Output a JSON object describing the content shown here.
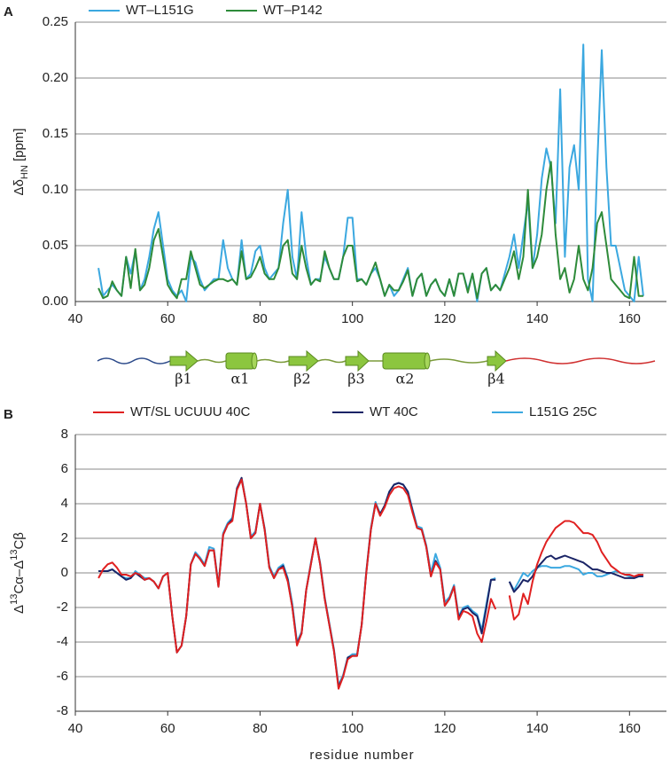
{
  "chart_data": [
    {
      "type": "line",
      "panel": "A",
      "ylabel": {
        "main": "Δδ",
        "sub": "HN",
        "unit": " [ppm]"
      },
      "xlim": [
        40,
        168
      ],
      "xticks": [
        40,
        60,
        80,
        100,
        120,
        140,
        160
      ],
      "ylim": [
        0,
        0.25
      ],
      "yticks": [
        {
          "value": 0,
          "label": "0.00"
        },
        {
          "value": 0.05,
          "label": "0.05"
        },
        {
          "value": 0.1,
          "label": "0.10"
        },
        {
          "value": 0.15,
          "label": "0.15"
        },
        {
          "value": 0.2,
          "label": "0.20"
        },
        {
          "value": 0.25,
          "label": "0.25"
        }
      ],
      "grid": true,
      "legend": "top",
      "x": [
        45,
        46,
        47,
        48,
        49,
        50,
        51,
        52,
        53,
        54,
        55,
        56,
        57,
        58,
        59,
        60,
        61,
        62,
        63,
        64,
        65,
        66,
        67,
        68,
        69,
        70,
        71,
        72,
        73,
        74,
        75,
        76,
        77,
        78,
        79,
        80,
        81,
        82,
        83,
        84,
        85,
        86,
        87,
        88,
        89,
        90,
        91,
        92,
        93,
        94,
        95,
        96,
        97,
        98,
        99,
        100,
        101,
        102,
        103,
        104,
        105,
        106,
        107,
        108,
        109,
        110,
        111,
        112,
        113,
        114,
        115,
        116,
        117,
        118,
        119,
        120,
        121,
        122,
        123,
        124,
        125,
        126,
        127,
        128,
        129,
        130,
        131,
        132,
        133,
        134,
        135,
        136,
        137,
        138,
        139,
        140,
        141,
        142,
        143,
        144,
        145,
        146,
        147,
        148,
        149,
        150,
        151,
        152,
        153,
        154,
        155,
        156,
        157,
        158,
        159,
        160,
        161,
        162,
        163
      ],
      "series": [
        {
          "name": "WT–L151G",
          "color": "#3ba8e0",
          "values": [
            0.03,
            0.005,
            0.01,
            0.015,
            0.01,
            0.005,
            0.04,
            0.025,
            0.045,
            0.01,
            0.02,
            0.04,
            0.065,
            0.08,
            0.05,
            0.02,
            0.01,
            0.005,
            0.01,
            0,
            0.04,
            0.035,
            0.02,
            0.01,
            0.015,
            0.02,
            0.02,
            0.055,
            0.03,
            0.02,
            0.015,
            0.055,
            0.02,
            0.025,
            0.045,
            0.05,
            0.03,
            0.02,
            0.025,
            0.03,
            0.07,
            0.1,
            0.04,
            0.02,
            0.08,
            0.04,
            0.015,
            0.02,
            0.02,
            0.04,
            0.03,
            0.02,
            0.02,
            0.04,
            0.075,
            0.075,
            0.02,
            0.02,
            0.015,
            0.025,
            0.03,
            0.02,
            0.005,
            0.015,
            0.005,
            0.01,
            0.02,
            0.03,
            0.005,
            0.02,
            0.025,
            0.005,
            0.015,
            0.02,
            0.01,
            0.005,
            0.02,
            0.005,
            0.025,
            0.025,
            0.01,
            0.025,
            0,
            0.025,
            0.03,
            0.01,
            0.015,
            0.01,
            0.025,
            0.04,
            0.06,
            0.03,
            0.06,
            0.09,
            0.03,
            0.06,
            0.11,
            0.137,
            0.12,
            0.07,
            0.19,
            0.04,
            0.12,
            0.14,
            0.1,
            0.23,
            0.02,
            0,
            0.12,
            0.225,
            0.12,
            0.05,
            0.05,
            0.03,
            0.01,
            0.005,
            0,
            0.04,
            0.005
          ]
        },
        {
          "name": "WT–P142",
          "color": "#2e8b3a",
          "values": [
            0.012,
            0.003,
            0.005,
            0.018,
            0.01,
            0.005,
            0.04,
            0.012,
            0.047,
            0.01,
            0.015,
            0.03,
            0.055,
            0.065,
            0.04,
            0.015,
            0.008,
            0.003,
            0.02,
            0.02,
            0.045,
            0.03,
            0.015,
            0.012,
            0.015,
            0.018,
            0.02,
            0.02,
            0.018,
            0.02,
            0.015,
            0.045,
            0.02,
            0.022,
            0.03,
            0.04,
            0.025,
            0.02,
            0.02,
            0.03,
            0.05,
            0.055,
            0.025,
            0.02,
            0.05,
            0.03,
            0.015,
            0.02,
            0.018,
            0.045,
            0.03,
            0.02,
            0.02,
            0.04,
            0.05,
            0.05,
            0.018,
            0.02,
            0.015,
            0.025,
            0.035,
            0.02,
            0.005,
            0.015,
            0.01,
            0.01,
            0.018,
            0.028,
            0.005,
            0.02,
            0.025,
            0.005,
            0.015,
            0.02,
            0.01,
            0.005,
            0.02,
            0.005,
            0.025,
            0.025,
            0.008,
            0.025,
            0.003,
            0.025,
            0.03,
            0.01,
            0.015,
            0.01,
            0.02,
            0.03,
            0.045,
            0.02,
            0.04,
            0.1,
            0.03,
            0.04,
            0.06,
            0.1,
            0.125,
            0.06,
            0.02,
            0.03,
            0.008,
            0.02,
            0.05,
            0.02,
            0.01,
            0.03,
            0.07,
            0.08,
            0.05,
            0.02,
            0.015,
            0.01,
            0.005,
            0.003,
            0.04,
            0.005,
            0.005
          ]
        }
      ]
    },
    {
      "type": "line",
      "panel": "B",
      "ylabel": [
        {
          "text": "Δ"
        },
        {
          "text": "13",
          "sup": true
        },
        {
          "text": "Cα–Δ"
        },
        {
          "text": "13",
          "sup": true
        },
        {
          "text": "Cβ"
        }
      ],
      "xlabel": "residue number",
      "xlim": [
        40,
        168
      ],
      "xticks": [
        40,
        60,
        80,
        100,
        120,
        140,
        160
      ],
      "ylim": [
        -8,
        8
      ],
      "yticks": [
        -8,
        -6,
        -4,
        -2,
        0,
        2,
        4,
        6,
        8
      ],
      "grid": true,
      "legend": "top",
      "x": [
        45,
        46,
        47,
        48,
        49,
        50,
        51,
        52,
        53,
        54,
        55,
        56,
        57,
        58,
        59,
        60,
        61,
        62,
        63,
        64,
        65,
        66,
        67,
        68,
        69,
        70,
        71,
        72,
        73,
        74,
        75,
        76,
        77,
        78,
        79,
        80,
        81,
        82,
        83,
        84,
        85,
        86,
        87,
        88,
        89,
        90,
        91,
        92,
        93,
        94,
        95,
        96,
        97,
        98,
        99,
        100,
        101,
        102,
        103,
        104,
        105,
        106,
        107,
        108,
        109,
        110,
        111,
        112,
        113,
        114,
        115,
        116,
        117,
        118,
        119,
        120,
        121,
        122,
        123,
        124,
        125,
        126,
        127,
        128,
        129,
        130,
        131,
        132,
        133,
        134,
        135,
        136,
        137,
        138,
        139,
        140,
        141,
        142,
        143,
        144,
        145,
        146,
        147,
        148,
        149,
        150,
        151,
        152,
        153,
        154,
        155,
        156,
        157,
        158,
        159,
        160,
        161,
        162,
        163
      ],
      "series": [
        {
          "name": "L151G 25C",
          "color": "#3ba8e0",
          "values": [
            0.1,
            0.1,
            0.1,
            0.2,
            0,
            -0.2,
            -0.3,
            -0.3,
            0.1,
            -0.1,
            -0.3,
            -0.3,
            -0.5,
            -0.9,
            -0.2,
            0,
            -2.5,
            -4.6,
            -4.2,
            -2.5,
            0.5,
            1.2,
            0.9,
            0.5,
            1.5,
            1.4,
            -0.7,
            2.3,
            2.9,
            3.2,
            4.9,
            5.4,
            4.0,
            2.1,
            2.4,
            4.0,
            2.6,
            0.4,
            -0.2,
            0.3,
            0.5,
            -0.3,
            -1.8,
            -4.0,
            -3.4,
            -1,
            0.6,
            2.0,
            0.6,
            -1.4,
            -2.9,
            -4.4,
            -6.5,
            -5.9,
            -4.9,
            -4.7,
            -4.7,
            -3,
            0.1,
            2.6,
            4.1,
            3.4,
            3.9,
            4.7,
            5.1,
            5.2,
            5.1,
            4.7,
            3.7,
            2.7,
            2.6,
            1.6,
            0,
            1.1,
            0.3,
            -1.7,
            -1.4,
            -0.7,
            -2.5,
            -2.0,
            -1.9,
            -2.2,
            -2.4,
            -3.3,
            -1.8,
            -0.4,
            -0.3,
            null,
            null,
            -0.5,
            -1.0,
            -0.5,
            0,
            -0.2,
            0.1,
            0.3,
            0.4,
            0.4,
            0.3,
            0.3,
            0.3,
            0.4,
            0.4,
            0.3,
            0.2,
            -0.1,
            0,
            0,
            -0.2,
            -0.2,
            -0.1,
            0,
            0.1,
            0,
            -0.1,
            -0.2,
            -0.3,
            -0.2,
            -0.1
          ]
        },
        {
          "name": "WT 40C",
          "color": "#1a2466",
          "values": [
            0.1,
            0.1,
            0.1,
            0.2,
            0,
            -0.2,
            -0.4,
            -0.3,
            0,
            -0.2,
            -0.4,
            -0.3,
            -0.5,
            -0.9,
            -0.2,
            0,
            -2.5,
            -4.6,
            -4.2,
            -2.5,
            0.5,
            1.1,
            0.8,
            0.4,
            1.3,
            1.3,
            -0.8,
            2.2,
            2.8,
            3.1,
            4.9,
            5.5,
            4.0,
            2.0,
            2.3,
            4.0,
            2.5,
            0.3,
            -0.3,
            0.2,
            0.4,
            -0.4,
            -2,
            -4.1,
            -3.5,
            -1,
            0.5,
            2.0,
            0.5,
            -1.5,
            -3,
            -4.5,
            -6.6,
            -6,
            -4.9,
            -4.8,
            -4.8,
            -3,
            0,
            2.5,
            4.0,
            3.4,
            3.9,
            4.7,
            5.1,
            5.2,
            5.1,
            4.7,
            3.6,
            2.6,
            2.5,
            1.5,
            -0.2,
            0.7,
            0.2,
            -1.9,
            -1.5,
            -0.8,
            -2.6,
            -2.1,
            -2.0,
            -2.3,
            -2.5,
            -3.5,
            -2,
            -0.4,
            -0.4,
            null,
            null,
            -0.5,
            -1.1,
            -0.8,
            -0.4,
            -0.5,
            -0.2,
            0.3,
            0.6,
            0.9,
            1.0,
            0.8,
            0.9,
            1.0,
            0.9,
            0.8,
            0.7,
            0.6,
            0.4,
            0.2,
            0.2,
            0.1,
            0,
            0,
            -0.1,
            -0.2,
            -0.3,
            -0.3,
            -0.3,
            -0.2,
            -0.2
          ]
        },
        {
          "name": "WT/SL UCUUU 40C",
          "color": "#e02020",
          "values": [
            -0.3,
            0.2,
            0.5,
            0.6,
            0.3,
            -0.1,
            -0.1,
            -0.2,
            0,
            -0.1,
            -0.4,
            -0.3,
            -0.5,
            -0.9,
            -0.2,
            0,
            -2.5,
            -4.6,
            -4.2,
            -2.5,
            0.5,
            1.1,
            0.8,
            0.4,
            1.3,
            1.3,
            -0.8,
            2.2,
            2.8,
            3.0,
            4.8,
            5.4,
            4.0,
            2.0,
            2.3,
            4.0,
            2.5,
            0.3,
            -0.3,
            0.2,
            0.3,
            -0.5,
            -2,
            -4.2,
            -3.5,
            -1,
            0.5,
            2.0,
            0.5,
            -1.5,
            -3,
            -4.5,
            -6.7,
            -6,
            -5,
            -4.8,
            -4.8,
            -3,
            0,
            2.5,
            4.0,
            3.3,
            3.8,
            4.5,
            4.9,
            5.0,
            4.9,
            4.5,
            3.5,
            2.6,
            2.5,
            1.5,
            -0.2,
            0.6,
            0.2,
            -1.9,
            -1.5,
            -0.8,
            -2.7,
            -2.2,
            -2.3,
            -2.5,
            -3.5,
            -4.0,
            -2.8,
            -1.5,
            -2.1,
            null,
            null,
            -1.3,
            -2.7,
            -2.4,
            -1.2,
            -1.8,
            -0.5,
            0.5,
            1.2,
            1.8,
            2.2,
            2.6,
            2.8,
            3.0,
            3.0,
            2.9,
            2.6,
            2.3,
            2.3,
            2.2,
            1.8,
            1.2,
            0.8,
            0.4,
            0.2,
            0,
            -0.1,
            -0.1,
            -0.2,
            -0.1,
            -0.1
          ]
        }
      ]
    }
  ],
  "secondary_structure": {
    "elements": [
      {
        "label": "β1"
      },
      {
        "label": "α1"
      },
      {
        "label": "β2"
      },
      {
        "label": "β3"
      },
      {
        "label": "α2"
      },
      {
        "label": "β4"
      }
    ]
  }
}
